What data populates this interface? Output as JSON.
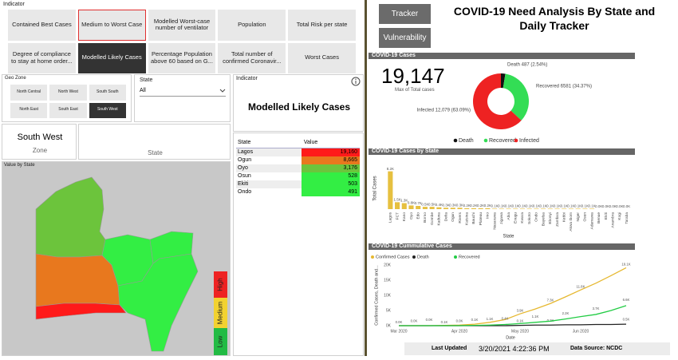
{
  "indicator_slicer": {
    "title": "Indicator",
    "options": [
      "Contained Best Cases",
      "Medium to Worst Case",
      "Modelled Worst-case number of ventilator",
      "Population",
      "Total Risk per state",
      "Degree of compliance to stay at home order...",
      "Modelled Likely Cases",
      "Percentage Population above 60 based on G...",
      "Total number of confirmed Coronavir...",
      "Worst Cases"
    ],
    "selected_index": 6,
    "hover_index": 1
  },
  "geo_zone": {
    "title": "Geo Zone",
    "options": [
      "North Central",
      "North West",
      "South South",
      "North East",
      "South East",
      "South West"
    ],
    "selected_index": 5
  },
  "state_slicer": {
    "title": "State",
    "value": "All"
  },
  "indicator_card": {
    "title": "Indicator",
    "value": "Modelled Likely Cases"
  },
  "zone_card": {
    "value": "South West",
    "label": "Zone"
  },
  "state_card": {
    "label": "State"
  },
  "map": {
    "title": "Value by State",
    "legend": [
      "High",
      "Medium",
      "Low"
    ],
    "legend_colors": [
      "#ee2222",
      "#f2d230",
      "#22bb44"
    ]
  },
  "table": {
    "columns": [
      "State",
      "Value"
    ],
    "rows": [
      [
        "Lagos",
        "19,160"
      ],
      [
        "Ogun",
        "8,665"
      ],
      [
        "Oyo",
        "3,176"
      ],
      [
        "Osun",
        "528"
      ],
      [
        "Ekiti",
        "503"
      ],
      [
        "Ondo",
        "491"
      ]
    ],
    "colors": [
      "#ff1a1a",
      "#e8781e",
      "#6cc43c",
      "#33ee44",
      "#33ee44",
      "#33ee44"
    ]
  },
  "nav": {
    "buttons": [
      "Tracker",
      "Vulnerability"
    ]
  },
  "header": {
    "title": "COVID-19 Need Analysis By State and Daily Tracker"
  },
  "cases_card": {
    "title": "COVID-19 Cases",
    "value": "19,147",
    "label": "Max of Total cases"
  },
  "footer": {
    "last_updated_label": "Last Updated",
    "last_updated": "3/20/2021 4:22:36 PM",
    "source": "Data Source: NCDC"
  },
  "chart_data": [
    {
      "type": "pie",
      "donut": true,
      "categories": [
        "Death",
        "Recovered",
        "Infected"
      ],
      "values": [
        487,
        6581,
        12079
      ],
      "value_labels": [
        "Death 487 (2.54%)",
        "Recovered 6581 (34.37%)",
        "Infected 12,079 (63.09%)"
      ],
      "colors": [
        "#111111",
        "#33dd55",
        "#ee2222"
      ]
    },
    {
      "type": "bar",
      "title": "COVID-19 Cases by State",
      "y_label": "Total Cases",
      "x_label": "State",
      "color": "#e6c040",
      "ylim": [
        0,
        9000
      ],
      "categories": [
        "Lagos",
        "FCT",
        "Kano",
        "Oyo",
        "Edo",
        "Borno",
        "Gombe",
        "Kaduna",
        "Delta",
        "Ogun",
        "Rivers",
        "Katsina",
        "Bauchi",
        "Plateau",
        "Imo",
        "Nasarawa",
        "Jigawa",
        "Abia",
        "Enugu",
        "Kwara",
        "Sokoto",
        "Ondo",
        "Bayelsa",
        "Ebonyi",
        "Zamfara",
        "Kebbi",
        "Akwa Ibom",
        "Niger",
        "Osun",
        "Adamawa",
        "Benue",
        "Ekiti",
        "Anambra",
        "Kogi",
        "Taraba"
      ],
      "values": [
        8200,
        1500,
        1300,
        800,
        700,
        500,
        500,
        400,
        300,
        300,
        300,
        200,
        200,
        200,
        200,
        100,
        100,
        100,
        100,
        100,
        100,
        100,
        100,
        100,
        100,
        100,
        100,
        100,
        100,
        100,
        0,
        0,
        0,
        0,
        0
      ],
      "value_labels": [
        "8.2K",
        "1.5K",
        "1.3K",
        "0.8K",
        "0.7K",
        "0.5K",
        "0.5K",
        "0.4K",
        "0.3K",
        "0.3K",
        "0.3K",
        "0.2K",
        "0.2K",
        "0.2K",
        "0.2K",
        "0.1K",
        "0.1K",
        "0.1K",
        "0.1K",
        "0.1K",
        "0.1K",
        "0.1K",
        "0.1K",
        "0.1K",
        "0.1K",
        "0.1K",
        "0.1K",
        "0.1K",
        "0.1K",
        "0.1K",
        "0.0K",
        "0.0K",
        "0.0K",
        "0.0K",
        "0.0K"
      ]
    },
    {
      "type": "line",
      "title": "COVID-19 Cummulative Cases",
      "y_label": "Confirmed Cases, Death and...",
      "x_label": "Date",
      "ylim": [
        0,
        20000
      ],
      "yticks": [
        {
          "value": 0,
          "label": "0K"
        },
        {
          "value": 5000,
          "label": "5K"
        },
        {
          "value": 10000,
          "label": "10K"
        },
        {
          "value": 15000,
          "label": "15K"
        },
        {
          "value": 20000,
          "label": "20K"
        }
      ],
      "categories": [
        "Mar 2020",
        null,
        null,
        null,
        "Apr 2020",
        null,
        null,
        null,
        "May 2020",
        null,
        null,
        null,
        "Jun 2020",
        null,
        null,
        null
      ],
      "series": [
        {
          "name": "Confirmed Cases",
          "color": "#e6b830",
          "values": [
            0,
            0,
            0,
            100,
            200,
            500,
            1100,
            2000,
            3900,
            5500,
            7300,
            9500,
            11800,
            14000,
            16500,
            19100
          ],
          "value_labels": [
            "0.0K",
            null,
            null,
            "0.1K",
            null,
            null,
            "1.1K",
            null,
            "3.9K",
            null,
            "7.3K",
            null,
            "11.8K",
            null,
            null,
            "19.1K"
          ]
        },
        {
          "name": "Death",
          "color": "#222222",
          "values": [
            0,
            0,
            0,
            0,
            0,
            0,
            0,
            0,
            100,
            200,
            200,
            300,
            300,
            400,
            400,
            500
          ],
          "value_labels": [
            null,
            "0.0K",
            null,
            null,
            "0.0K",
            null,
            null,
            null,
            "0.1K",
            null,
            "0.2K",
            null,
            null,
            null,
            null,
            "0.5K"
          ]
        },
        {
          "name": "Recovered",
          "color": "#22cc44",
          "values": [
            0,
            0,
            0,
            0,
            0,
            100,
            200,
            400,
            700,
            1100,
            1500,
            2200,
            3000,
            3700,
            5000,
            6600
          ],
          "value_labels": [
            null,
            null,
            "0.0K",
            null,
            null,
            "0.1K",
            null,
            "0.4K",
            null,
            "1.1K",
            null,
            "2.2K",
            null,
            "3.7K",
            null,
            "6.6K"
          ]
        }
      ]
    }
  ]
}
